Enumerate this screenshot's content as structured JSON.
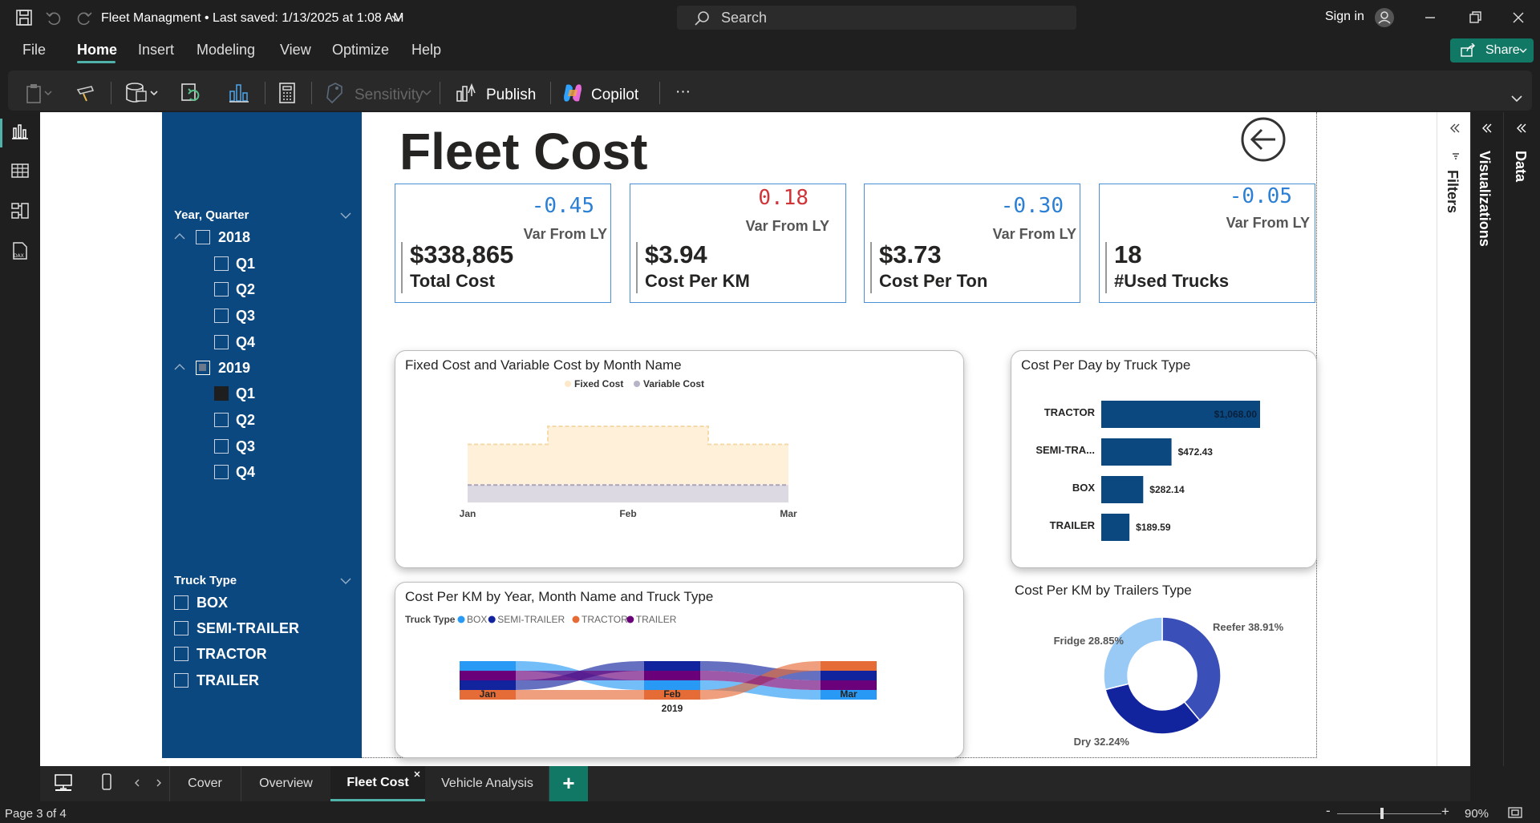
{
  "titlebar": {
    "doc_title": "Fleet Managment • Last saved: 1/13/2025 at 1:08 AM",
    "search_placeholder": "Search",
    "signin": "Sign in"
  },
  "menu": {
    "items": [
      "File",
      "Home",
      "Insert",
      "Modeling",
      "View",
      "Optimize",
      "Help"
    ],
    "active": "Home",
    "share": "Share"
  },
  "ribbon": {
    "sensitivity": "Sensitivity",
    "publish": "Publish",
    "copilot": "Copilot",
    "more": "···"
  },
  "slicers": {
    "year_quarter": {
      "header": "Year, Quarter",
      "years": [
        {
          "label": "2018",
          "state": "unchecked",
          "quarters": [
            {
              "label": "Q1",
              "checked": false
            },
            {
              "label": "Q2",
              "checked": false
            },
            {
              "label": "Q3",
              "checked": false
            },
            {
              "label": "Q4",
              "checked": false
            }
          ]
        },
        {
          "label": "2019",
          "state": "partial",
          "quarters": [
            {
              "label": "Q1",
              "checked": true
            },
            {
              "label": "Q2",
              "checked": false
            },
            {
              "label": "Q3",
              "checked": false
            },
            {
              "label": "Q4",
              "checked": false
            }
          ]
        }
      ]
    },
    "truck_type": {
      "header": "Truck Type",
      "items": [
        "BOX",
        "SEMI-TRAILER",
        "TRACTOR",
        "TRAILER"
      ]
    }
  },
  "report": {
    "title": "Fleet Cost"
  },
  "kpis": [
    {
      "var": "-0.45",
      "var_label": "Var From LY",
      "value": "$338,865",
      "label": "Total Cost",
      "color": "#2b7fd4"
    },
    {
      "var": "0.18",
      "var_label": "Var From LY",
      "value": "$3.94",
      "label": "Cost Per KM",
      "color": "#d13438"
    },
    {
      "var": "-0.30",
      "var_label": "Var From LY",
      "value": "$3.73",
      "label": "Cost Per Ton",
      "color": "#2b7fd4"
    },
    {
      "var": "-0.05",
      "var_label": "Var From LY",
      "value": "18",
      "label": "#Used Trucks",
      "color": "#2b7fd4"
    }
  ],
  "chart_data": [
    {
      "type": "area",
      "title": "Fixed Cost and Variable Cost by Month Name",
      "categories": [
        "Jan",
        "Feb",
        "Mar"
      ],
      "series": [
        {
          "name": "Fixed Cost",
          "values": [
            29000,
            38000,
            29000
          ],
          "color": "#fde9c9"
        },
        {
          "name": "Variable Cost",
          "values": [
            31000,
            31000,
            31000
          ],
          "color": "#b7b4c7"
        }
      ]
    },
    {
      "type": "bar",
      "title": "Cost Per Day by Truck Type",
      "categories": [
        "TRACTOR",
        "SEMI-TRA...",
        "BOX",
        "TRAILER"
      ],
      "values": [
        1068.0,
        472.43,
        282.14,
        189.59
      ],
      "labels": [
        "$1,068.00",
        "$472.43",
        "$282.14",
        "$189.59"
      ],
      "color": "#0b4880",
      "xlim": [
        0,
        1068
      ]
    },
    {
      "type": "bar",
      "title": "Cost Per KM by Year, Month Name and Truck Type",
      "legend_title": "Truck Type",
      "categories": [
        "Jan",
        "Feb",
        "Mar"
      ],
      "x_group": "2019",
      "series": [
        {
          "name": "BOX",
          "color": "#2899f5"
        },
        {
          "name": "SEMI-TRAILER",
          "color": "#12239e"
        },
        {
          "name": "TRACTOR",
          "color": "#e66c37"
        },
        {
          "name": "TRAILER",
          "color": "#6b007b"
        }
      ]
    },
    {
      "type": "pie",
      "title": "Cost Per KM by Trailers Type",
      "slices": [
        {
          "name": "Reefer",
          "value": 38.91,
          "label": "Reefer 38.91%",
          "color": "#3a4fb8"
        },
        {
          "name": "Dry",
          "value": 32.24,
          "label": "Dry 32.24%",
          "color": "#12239e"
        },
        {
          "name": "Fridge",
          "value": 28.85,
          "label": "Fridge 28.85%",
          "color": "#99c9f5"
        }
      ]
    }
  ],
  "panes": {
    "filters": "Filters",
    "visualizations": "Visualizations",
    "data": "Data"
  },
  "pages": {
    "tabs": [
      "Cover",
      "Overview",
      "Fleet Cost",
      "Vehicle Analysis"
    ],
    "active": "Fleet Cost",
    "add": "+"
  },
  "status": {
    "page": "Page 3 of 4",
    "zoom": "90%"
  }
}
